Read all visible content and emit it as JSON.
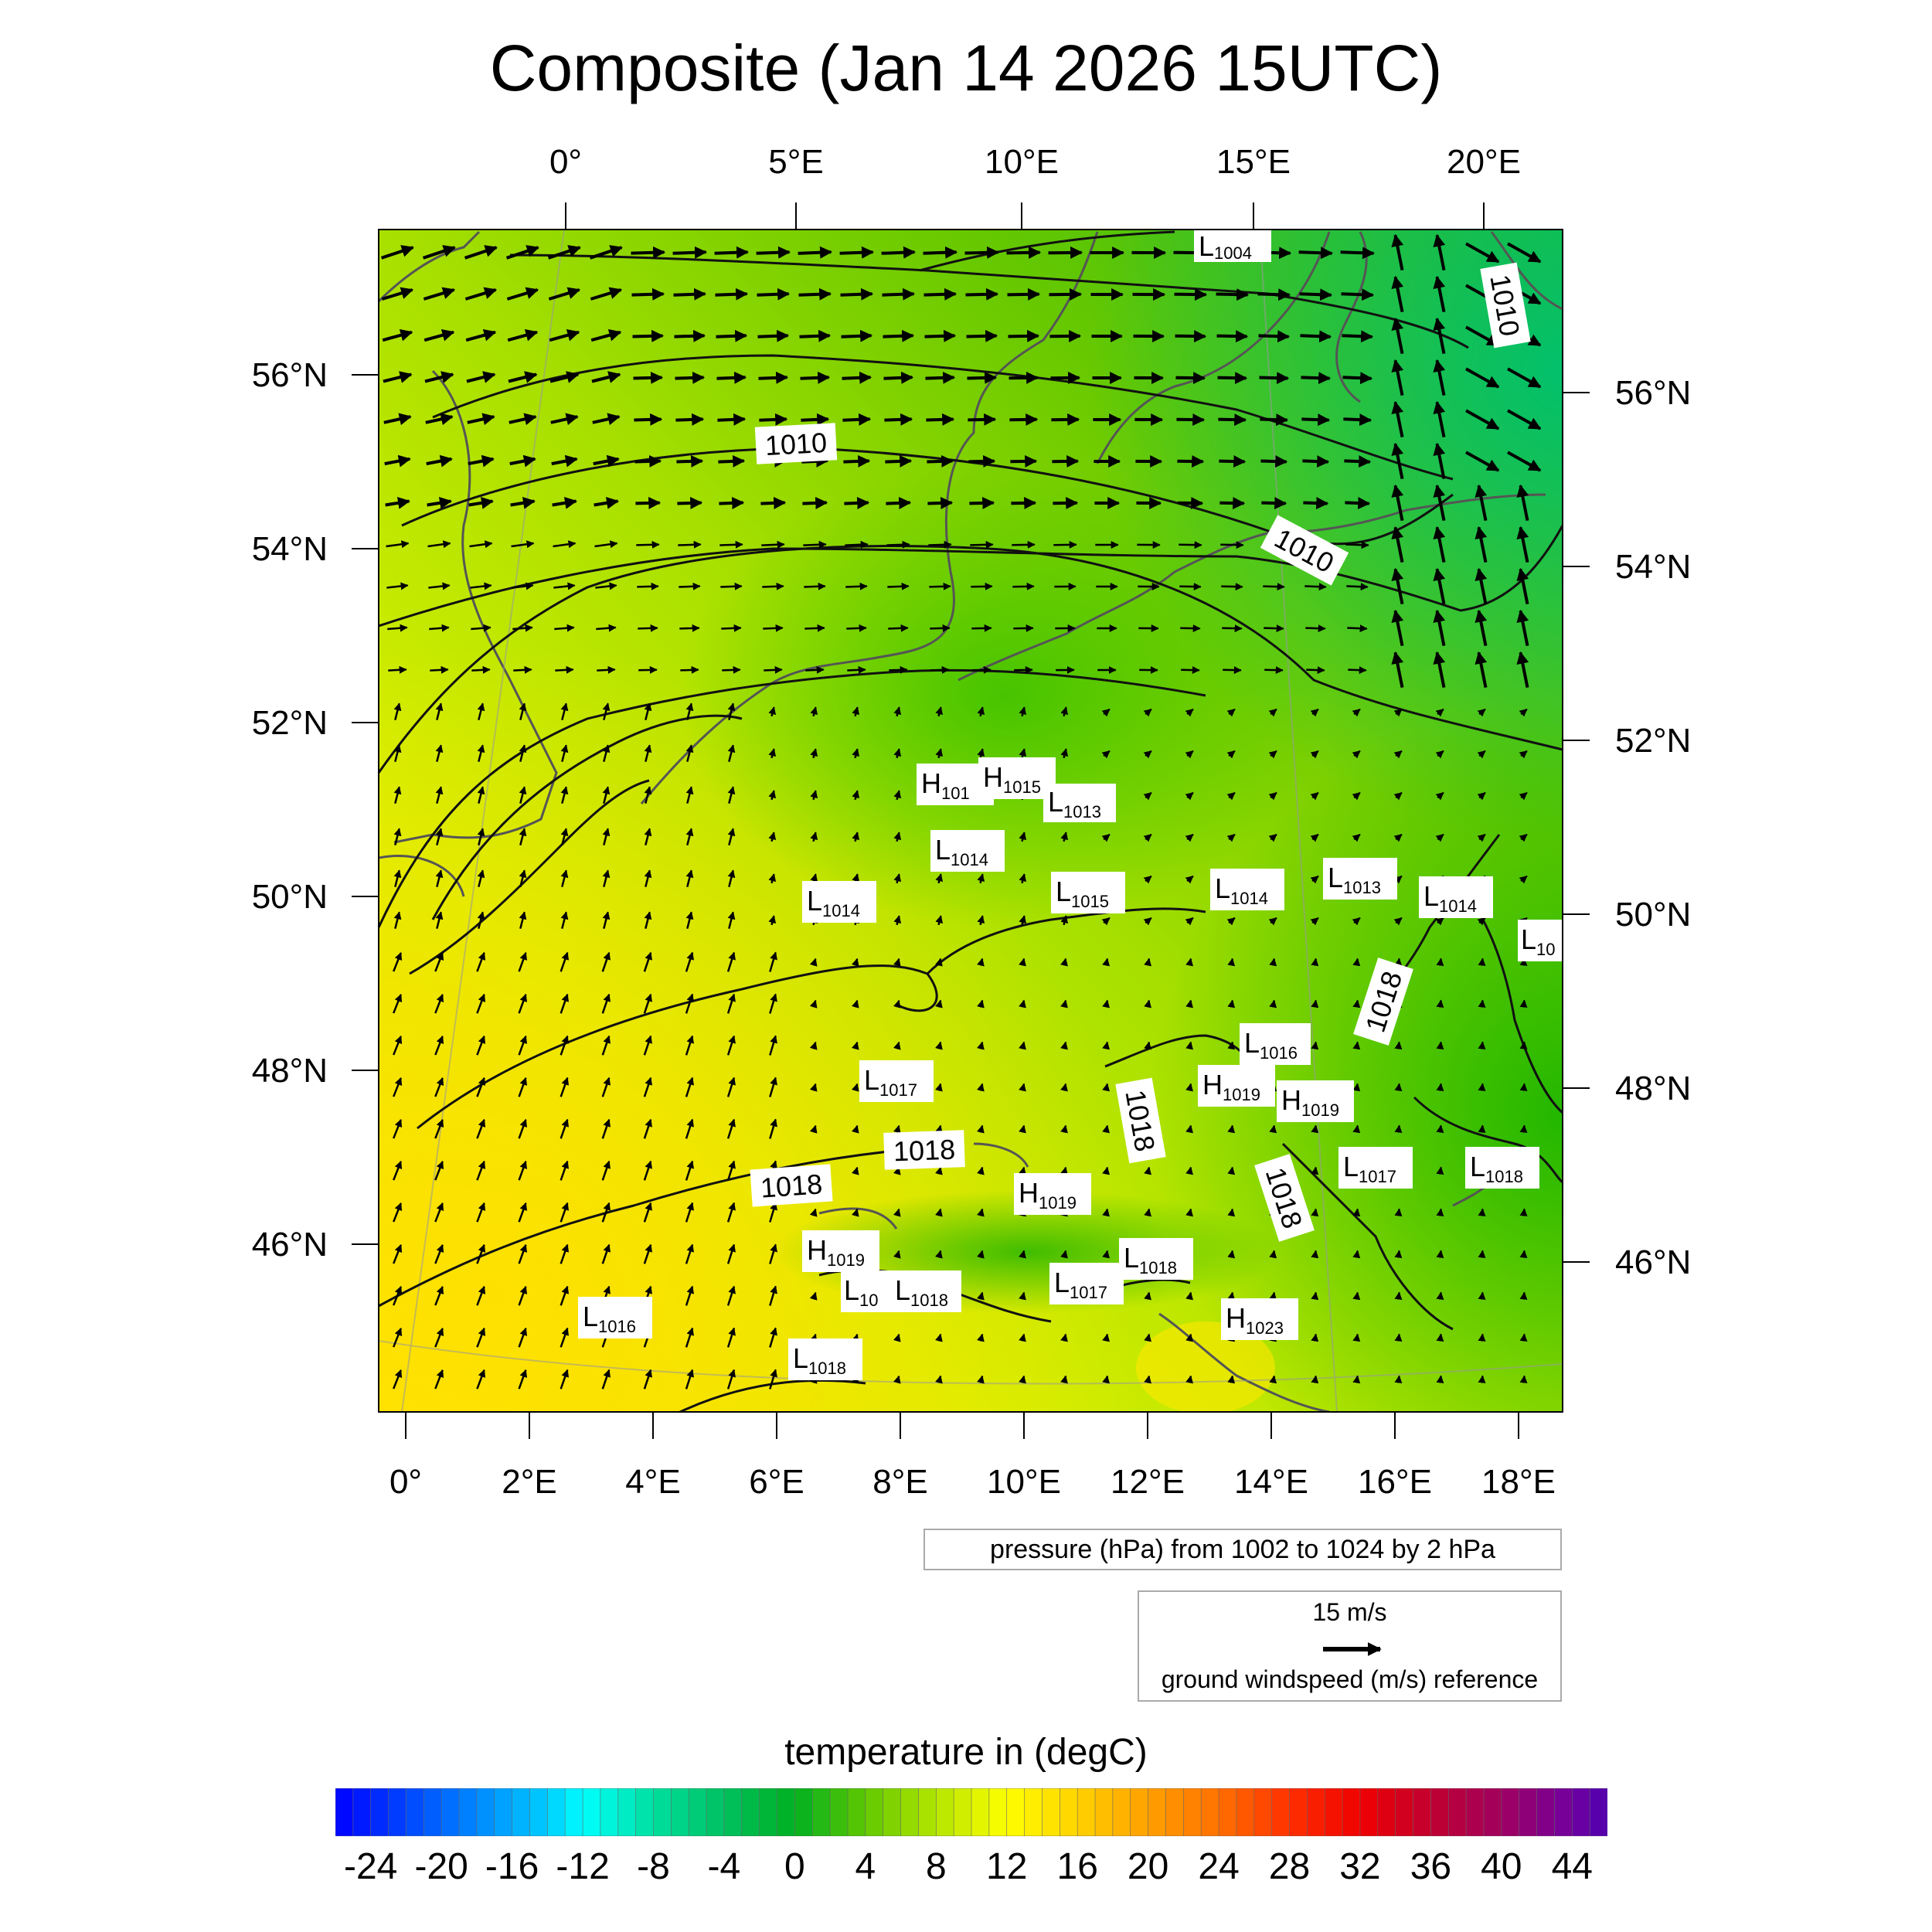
{
  "title": "Composite (Jan 14 2026 15UTC)",
  "map": {
    "top_lon_labels": [
      "0°",
      "5°E",
      "10°E",
      "15°E",
      "20°E"
    ],
    "bottom_lon_labels": [
      "0°",
      "2°E",
      "4°E",
      "6°E",
      "8°E",
      "10°E",
      "12°E",
      "14°E",
      "16°E",
      "18°E"
    ],
    "left_lat_labels": [
      "56°N",
      "54°N",
      "52°N",
      "50°N",
      "48°N",
      "46°N"
    ],
    "right_lat_labels": [
      "56°N",
      "54°N",
      "52°N",
      "50°N",
      "48°N",
      "46°N"
    ],
    "contour_labels": [
      {
        "id": "c1",
        "text": "1010"
      },
      {
        "id": "c2",
        "text": "1010"
      },
      {
        "id": "c3",
        "text": "1010"
      },
      {
        "id": "c4",
        "text": "1018"
      },
      {
        "id": "c5",
        "text": "1018"
      },
      {
        "id": "c6",
        "text": "1018"
      },
      {
        "id": "c7",
        "text": "1018"
      },
      {
        "id": "c8",
        "text": "1018"
      }
    ],
    "pressure_centers": [
      {
        "id": "p1",
        "type": "L",
        "value": "1004"
      },
      {
        "id": "p2",
        "type": "H",
        "value": "101"
      },
      {
        "id": "p3",
        "type": "H",
        "value": "1015"
      },
      {
        "id": "p4",
        "type": "L",
        "value": "1013"
      },
      {
        "id": "p5",
        "type": "L",
        "value": "1014"
      },
      {
        "id": "p6",
        "type": "L",
        "value": "1014"
      },
      {
        "id": "p7",
        "type": "L",
        "value": "1015"
      },
      {
        "id": "p8",
        "type": "L",
        "value": "1014"
      },
      {
        "id": "p9",
        "type": "L",
        "value": "1013"
      },
      {
        "id": "p10",
        "type": "L",
        "value": "1014"
      },
      {
        "id": "p11",
        "type": "L",
        "value": "10"
      },
      {
        "id": "p12",
        "type": "L",
        "value": "1016"
      },
      {
        "id": "p13",
        "type": "L",
        "value": "1017"
      },
      {
        "id": "p14",
        "type": "H",
        "value": "1019"
      },
      {
        "id": "p15",
        "type": "H",
        "value": "1019"
      },
      {
        "id": "p16",
        "type": "L",
        "value": "1017"
      },
      {
        "id": "p17",
        "type": "L",
        "value": "1018"
      },
      {
        "id": "p18",
        "type": "H",
        "value": "1019"
      },
      {
        "id": "p19",
        "type": "H",
        "value": "1019"
      },
      {
        "id": "p20",
        "type": "L",
        "value": "10"
      },
      {
        "id": "p21",
        "type": "L",
        "value": "1018"
      },
      {
        "id": "p22",
        "type": "L",
        "value": "1017"
      },
      {
        "id": "p23",
        "type": "L",
        "value": "1018"
      },
      {
        "id": "p24",
        "type": "L",
        "value": "1016"
      },
      {
        "id": "p25",
        "type": "H",
        "value": "1023"
      },
      {
        "id": "p26",
        "type": "L",
        "value": "1018"
      }
    ]
  },
  "legend": {
    "pressure": "pressure (hPa) from 1002 to 1024 by 2 hPa",
    "wind_speed": "15 m/s",
    "wind_ref": "ground windspeed (m/s) reference"
  },
  "colorbar": {
    "title": "temperature in (degC)",
    "min": -26,
    "max": 46,
    "step": 1,
    "tick_labels": [
      "-24",
      "-20",
      "-16",
      "-12",
      "-8",
      "-4",
      "0",
      "4",
      "8",
      "12",
      "16",
      "20",
      "24",
      "28",
      "32",
      "36",
      "40",
      "44"
    ],
    "stops": [
      {
        "t": -26,
        "c": "#0000ff"
      },
      {
        "t": -20,
        "c": "#0066ff"
      },
      {
        "t": -14,
        "c": "#00ccff"
      },
      {
        "t": -12,
        "c": "#00ffff"
      },
      {
        "t": -8,
        "c": "#00e0a0"
      },
      {
        "t": -4,
        "c": "#00c060"
      },
      {
        "t": 0,
        "c": "#00b020"
      },
      {
        "t": 4,
        "c": "#60c800"
      },
      {
        "t": 8,
        "c": "#b4e600"
      },
      {
        "t": 12,
        "c": "#ffff00"
      },
      {
        "t": 16,
        "c": "#ffd200"
      },
      {
        "t": 20,
        "c": "#ffa000"
      },
      {
        "t": 24,
        "c": "#ff7000"
      },
      {
        "t": 28,
        "c": "#ff3000"
      },
      {
        "t": 32,
        "c": "#f00000"
      },
      {
        "t": 36,
        "c": "#c00030"
      },
      {
        "t": 40,
        "c": "#a00060"
      },
      {
        "t": 44,
        "c": "#7000a0"
      },
      {
        "t": 46,
        "c": "#5000b0"
      }
    ]
  }
}
